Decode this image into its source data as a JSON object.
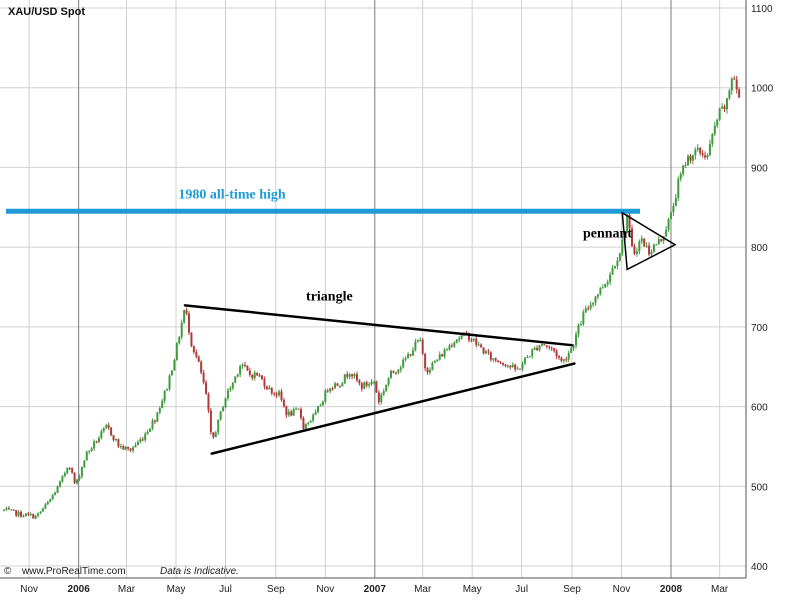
{
  "chart_data": {
    "type": "line",
    "title": "XAU/USD Spot",
    "y_ticks": [
      "1100",
      "1000",
      "900",
      "800",
      "700",
      "600",
      "500",
      "400"
    ],
    "ylim": [
      400,
      1100
    ],
    "x_ticks": [
      "Nov",
      "2006",
      "Mar",
      "May",
      "Jul",
      "Sep",
      "Nov",
      "2007",
      "Mar",
      "May",
      "Jul",
      "Sep",
      "Nov",
      "2008",
      "Mar"
    ],
    "x_ticks_bold": [
      "2006",
      "2007",
      "2008"
    ],
    "grid": true,
    "series": [
      {
        "values": [
          [
            "2005-10-01",
            470
          ],
          [
            "2005-10-20",
            465
          ],
          [
            "2005-11-10",
            462
          ],
          [
            "2005-11-25",
            480
          ],
          [
            "2005-12-10",
            505
          ],
          [
            "2005-12-20",
            530
          ],
          [
            "2005-12-28",
            500
          ],
          [
            "2006-01-10",
            540
          ],
          [
            "2006-01-25",
            560
          ],
          [
            "2006-02-05",
            575
          ],
          [
            "2006-02-20",
            550
          ],
          [
            "2006-03-05",
            545
          ],
          [
            "2006-03-20",
            560
          ],
          [
            "2006-04-05",
            585
          ],
          [
            "2006-04-20",
            625
          ],
          [
            "2006-05-01",
            670
          ],
          [
            "2006-05-12",
            725
          ],
          [
            "2006-05-20",
            680
          ],
          [
            "2006-05-30",
            650
          ],
          [
            "2006-06-08",
            610
          ],
          [
            "2006-06-14",
            555
          ],
          [
            "2006-06-22",
            580
          ],
          [
            "2006-06-30",
            610
          ],
          [
            "2006-07-10",
            630
          ],
          [
            "2006-07-20",
            655
          ],
          [
            "2006-07-30",
            640
          ],
          [
            "2006-08-10",
            640
          ],
          [
            "2006-08-25",
            620
          ],
          [
            "2006-09-05",
            615
          ],
          [
            "2006-09-15",
            590
          ],
          [
            "2006-09-30",
            595
          ],
          [
            "2006-10-05",
            575
          ],
          [
            "2006-10-20",
            590
          ],
          [
            "2006-11-05",
            625
          ],
          [
            "2006-11-20",
            630
          ],
          [
            "2006-12-01",
            645
          ],
          [
            "2006-12-15",
            625
          ],
          [
            "2007-01-01",
            632
          ],
          [
            "2007-01-05",
            605
          ],
          [
            "2007-01-20",
            640
          ],
          [
            "2007-02-05",
            655
          ],
          [
            "2007-02-25",
            685
          ],
          [
            "2007-03-05",
            645
          ],
          [
            "2007-03-20",
            660
          ],
          [
            "2007-04-10",
            685
          ],
          [
            "2007-04-25",
            690
          ],
          [
            "2007-05-10",
            675
          ],
          [
            "2007-05-25",
            660
          ],
          [
            "2007-06-10",
            655
          ],
          [
            "2007-06-25",
            645
          ],
          [
            "2007-07-10",
            665
          ],
          [
            "2007-07-25",
            680
          ],
          [
            "2007-08-10",
            670
          ],
          [
            "2007-08-20",
            655
          ],
          [
            "2007-09-01",
            675
          ],
          [
            "2007-09-15",
            715
          ],
          [
            "2007-10-01",
            740
          ],
          [
            "2007-10-15",
            760
          ],
          [
            "2007-11-01",
            800
          ],
          [
            "2007-11-08",
            840
          ],
          [
            "2007-11-15",
            790
          ],
          [
            "2007-11-25",
            810
          ],
          [
            "2007-12-05",
            795
          ],
          [
            "2007-12-20",
            810
          ],
          [
            "2008-01-01",
            840
          ],
          [
            "2008-01-10",
            880
          ],
          [
            "2008-01-20",
            910
          ],
          [
            "2008-02-01",
            920
          ],
          [
            "2008-02-15",
            915
          ],
          [
            "2008-02-28",
            965
          ],
          [
            "2008-03-10",
            980
          ],
          [
            "2008-03-17",
            1020
          ],
          [
            "2008-03-25",
            985
          ]
        ]
      }
    ],
    "annotations": [
      {
        "label": "1980 all-time high",
        "kind": "horizontal line",
        "y": 845,
        "color": "#1e9bd7"
      },
      {
        "label": "triangle",
        "kind": "converging trendlines",
        "color": "#000000"
      },
      {
        "label": "pennant",
        "kind": "small triangle",
        "color": "#000000"
      }
    ],
    "footer": {
      "copyright_mark": "©",
      "source": "www.ProRealTime.com",
      "note": "Data is Indicative."
    },
    "colors": {
      "up": "#3e9b3e",
      "down": "#b03a3a",
      "grid": "#d0d0d0",
      "year_grid": "#7a7a7a",
      "all_time_high": "#1e9bd7"
    }
  }
}
